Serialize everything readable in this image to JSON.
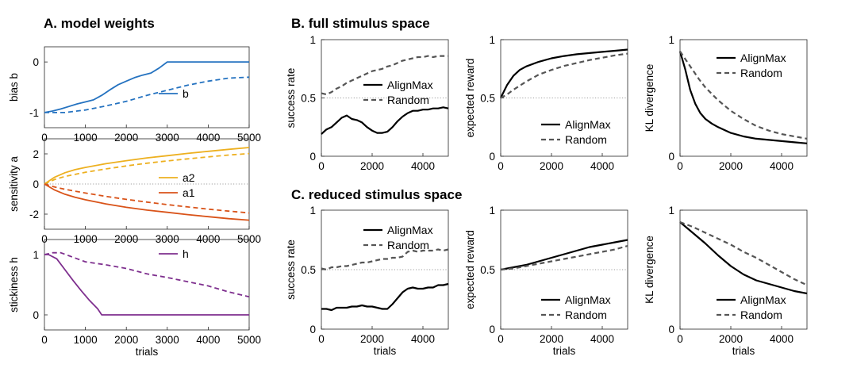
{
  "panel_titles": [
    "A. model weights",
    "B. full stimulus space",
    "C. reduced stimulus space"
  ],
  "colors": {
    "b": "#2472c0",
    "a2": "#edb020",
    "a1": "#d95319",
    "h": "#7e2f8e",
    "alignmax": "#000000",
    "random": "#555555"
  },
  "chart_data": [
    {
      "id": "A1",
      "type": "line",
      "ylabel": "bias b",
      "xlim": [
        0,
        5000
      ],
      "ylim": [
        -1.3,
        0.3
      ],
      "yticks": [
        -1,
        0
      ],
      "xticks": [
        0,
        1000,
        2000,
        3000,
        4000,
        5000
      ],
      "ref_lines": [],
      "legend_loc": "bottom-right",
      "series": [
        {
          "name": "b",
          "style": "solid",
          "color": "#2472c0",
          "x": [
            0,
            200,
            400,
            600,
            800,
            1000,
            1200,
            1400,
            1600,
            1800,
            2000,
            2200,
            2400,
            2600,
            2800,
            3000,
            5000
          ],
          "y": [
            -1.0,
            -0.97,
            -0.93,
            -0.88,
            -0.83,
            -0.79,
            -0.75,
            -0.66,
            -0.55,
            -0.45,
            -0.38,
            -0.31,
            -0.26,
            -0.22,
            -0.12,
            0.0,
            0.0
          ]
        },
        {
          "name": "",
          "style": "dashed",
          "color": "#2472c0",
          "x": [
            0,
            500,
            1000,
            1500,
            2000,
            2500,
            3000,
            3500,
            4000,
            4500,
            5000
          ],
          "y": [
            -1.0,
            -1.0,
            -0.95,
            -0.87,
            -0.78,
            -0.66,
            -0.56,
            -0.46,
            -0.38,
            -0.32,
            -0.3
          ]
        }
      ]
    },
    {
      "id": "A2",
      "type": "line",
      "ylabel": "sensitivity a",
      "xlim": [
        0,
        5000
      ],
      "ylim": [
        -3,
        3
      ],
      "yticks": [
        -2,
        0,
        2
      ],
      "xticks": [
        0,
        1000,
        2000,
        3000,
        4000,
        5000
      ],
      "ref_lines": [
        0
      ],
      "legend_loc": "right",
      "series": [
        {
          "name": "a2",
          "style": "solid",
          "color": "#edb020",
          "x": [
            0,
            250,
            500,
            750,
            1000,
            1500,
            2000,
            2500,
            3000,
            3500,
            4000,
            4500,
            5000
          ],
          "y": [
            0,
            0.45,
            0.75,
            0.95,
            1.1,
            1.35,
            1.55,
            1.73,
            1.88,
            2.03,
            2.17,
            2.3,
            2.42
          ]
        },
        {
          "name": "",
          "style": "dashed",
          "color": "#edb020",
          "x": [
            0,
            250,
            500,
            1000,
            1500,
            2000,
            2500,
            3000,
            3500,
            4000,
            4500,
            5000
          ],
          "y": [
            0,
            0.3,
            0.5,
            0.78,
            1.0,
            1.2,
            1.38,
            1.53,
            1.67,
            1.8,
            1.92,
            2.02
          ]
        },
        {
          "name": "a1",
          "style": "solid",
          "color": "#d95319",
          "x": [
            0,
            250,
            500,
            750,
            1000,
            1500,
            2000,
            2500,
            3000,
            3500,
            4000,
            4500,
            5000
          ],
          "y": [
            0,
            -0.4,
            -0.68,
            -0.88,
            -1.05,
            -1.32,
            -1.55,
            -1.73,
            -1.88,
            -2.03,
            -2.17,
            -2.3,
            -2.4
          ]
        },
        {
          "name": "",
          "style": "dashed",
          "color": "#d95319",
          "x": [
            0,
            250,
            500,
            1000,
            1500,
            2000,
            2500,
            3000,
            3500,
            4000,
            4500,
            5000
          ],
          "y": [
            0,
            -0.2,
            -0.35,
            -0.6,
            -0.82,
            -1.02,
            -1.2,
            -1.37,
            -1.52,
            -1.67,
            -1.8,
            -1.92
          ]
        }
      ]
    },
    {
      "id": "A3",
      "type": "line",
      "ylabel": "stickiness h",
      "xlabel": "trials",
      "xlim": [
        0,
        5000
      ],
      "ylim": [
        -0.25,
        1.25
      ],
      "yticks": [
        0,
        1
      ],
      "xticks": [
        0,
        1000,
        2000,
        3000,
        4000,
        5000
      ],
      "ref_lines": [],
      "legend_loc": "top-right",
      "series": [
        {
          "name": "h",
          "style": "solid",
          "color": "#7e2f8e",
          "x": [
            0,
            100,
            300,
            500,
            700,
            900,
            1100,
            1300,
            1400,
            1700,
            5000
          ],
          "y": [
            1.0,
            1.0,
            0.93,
            0.75,
            0.57,
            0.4,
            0.24,
            0.1,
            0.0,
            0.0,
            0.0
          ]
        },
        {
          "name": "",
          "style": "dashed",
          "color": "#7e2f8e",
          "x": [
            0,
            200,
            400,
            600,
            800,
            1000,
            1500,
            2000,
            2500,
            3000,
            3500,
            4000,
            4500,
            5000
          ],
          "y": [
            1.0,
            1.03,
            1.03,
            0.98,
            0.93,
            0.88,
            0.83,
            0.77,
            0.68,
            0.62,
            0.55,
            0.48,
            0.38,
            0.3
          ]
        }
      ]
    },
    {
      "id": "B1",
      "type": "line",
      "ylabel": "success rate",
      "xlim": [
        0,
        5000
      ],
      "ylim": [
        0,
        1
      ],
      "yticks": [
        0,
        0.5,
        1
      ],
      "xticks": [
        0,
        2000,
        4000
      ],
      "ref_lines": [
        0.5
      ],
      "legend_loc": "middle-right",
      "series": [
        {
          "name": "AlignMax",
          "style": "solid",
          "color": "#000000",
          "x": [
            0,
            200,
            400,
            600,
            800,
            1000,
            1200,
            1400,
            1600,
            1800,
            2000,
            2200,
            2400,
            2600,
            2800,
            3000,
            3200,
            3400,
            3600,
            3800,
            4000,
            4200,
            4400,
            4600,
            4800,
            5000
          ],
          "y": [
            0.19,
            0.23,
            0.25,
            0.29,
            0.33,
            0.35,
            0.32,
            0.31,
            0.29,
            0.25,
            0.22,
            0.2,
            0.2,
            0.21,
            0.25,
            0.3,
            0.34,
            0.37,
            0.39,
            0.39,
            0.4,
            0.4,
            0.41,
            0.41,
            0.42,
            0.41
          ]
        },
        {
          "name": "Random",
          "style": "dashed",
          "color": "#555555",
          "x": [
            0,
            200,
            400,
            600,
            800,
            1000,
            1200,
            1400,
            1600,
            1800,
            2000,
            2200,
            2400,
            2600,
            2800,
            3000,
            3200,
            3400,
            3600,
            3800,
            4000,
            4200,
            4400,
            4600,
            4800,
            5000
          ],
          "y": [
            0.54,
            0.53,
            0.55,
            0.58,
            0.6,
            0.63,
            0.65,
            0.67,
            0.69,
            0.71,
            0.73,
            0.74,
            0.75,
            0.77,
            0.78,
            0.8,
            0.82,
            0.83,
            0.84,
            0.85,
            0.85,
            0.86,
            0.85,
            0.86,
            0.86,
            0.86
          ]
        }
      ]
    },
    {
      "id": "B2",
      "type": "line",
      "ylabel": "expected reward",
      "xlim": [
        0,
        5000
      ],
      "ylim": [
        0,
        1
      ],
      "yticks": [
        0,
        0.5,
        1
      ],
      "xticks": [
        0,
        2000,
        4000
      ],
      "ref_lines": [
        0.5
      ],
      "legend_loc": "bottom-right",
      "series": [
        {
          "name": "AlignMax",
          "style": "solid",
          "color": "#000000",
          "x": [
            0,
            250,
            500,
            750,
            1000,
            1500,
            2000,
            2500,
            3000,
            3500,
            4000,
            4500,
            5000
          ],
          "y": [
            0.5,
            0.61,
            0.69,
            0.74,
            0.77,
            0.81,
            0.84,
            0.86,
            0.875,
            0.885,
            0.895,
            0.905,
            0.915
          ]
        },
        {
          "name": "Random",
          "style": "dashed",
          "color": "#555555",
          "x": [
            0,
            250,
            500,
            1000,
            1500,
            2000,
            2500,
            3000,
            3500,
            4000,
            4500,
            5000
          ],
          "y": [
            0.5,
            0.53,
            0.57,
            0.64,
            0.7,
            0.74,
            0.775,
            0.8,
            0.825,
            0.845,
            0.865,
            0.88
          ]
        }
      ]
    },
    {
      "id": "B3",
      "type": "line",
      "ylabel": "KL divergence",
      "xlim": [
        0,
        5000
      ],
      "ylim": [
        0,
        1
      ],
      "yticks": [
        0,
        1
      ],
      "xticks": [
        0,
        2000,
        4000
      ],
      "ref_lines": [],
      "legend_loc": "top-right",
      "series": [
        {
          "name": "AlignMax",
          "style": "solid",
          "color": "#000000",
          "x": [
            0,
            200,
            400,
            600,
            800,
            1000,
            1250,
            1500,
            2000,
            2500,
            3000,
            3500,
            4000,
            4500,
            5000
          ],
          "y": [
            0.9,
            0.75,
            0.57,
            0.45,
            0.37,
            0.32,
            0.28,
            0.25,
            0.2,
            0.17,
            0.15,
            0.14,
            0.13,
            0.12,
            0.11
          ]
        },
        {
          "name": "Random",
          "style": "dashed",
          "color": "#555555",
          "x": [
            0,
            250,
            500,
            750,
            1000,
            1500,
            2000,
            2500,
            3000,
            3500,
            4000,
            4500,
            5000
          ],
          "y": [
            0.9,
            0.82,
            0.74,
            0.66,
            0.59,
            0.48,
            0.39,
            0.32,
            0.26,
            0.22,
            0.19,
            0.17,
            0.15
          ]
        }
      ]
    },
    {
      "id": "C1",
      "type": "line",
      "ylabel": "success rate",
      "xlabel": "trials",
      "xlim": [
        0,
        5000
      ],
      "ylim": [
        0,
        1
      ],
      "yticks": [
        0,
        0.5,
        1
      ],
      "xticks": [
        0,
        2000,
        4000
      ],
      "ref_lines": [
        0.5
      ],
      "legend_loc": "top-right",
      "series": [
        {
          "name": "AlignMax",
          "style": "solid",
          "color": "#000000",
          "x": [
            0,
            200,
            400,
            600,
            800,
            1000,
            1200,
            1400,
            1600,
            1800,
            2000,
            2200,
            2400,
            2600,
            2800,
            3000,
            3200,
            3400,
            3600,
            3800,
            4000,
            4200,
            4400,
            4600,
            4800,
            5000
          ],
          "y": [
            0.17,
            0.17,
            0.16,
            0.18,
            0.18,
            0.18,
            0.19,
            0.19,
            0.2,
            0.19,
            0.19,
            0.18,
            0.17,
            0.17,
            0.21,
            0.26,
            0.31,
            0.34,
            0.35,
            0.34,
            0.34,
            0.35,
            0.35,
            0.37,
            0.37,
            0.38
          ]
        },
        {
          "name": "Random",
          "style": "dashed",
          "color": "#555555",
          "x": [
            0,
            200,
            400,
            600,
            800,
            1000,
            1200,
            1400,
            1600,
            1800,
            2000,
            2200,
            2400,
            2600,
            2800,
            3000,
            3200,
            3400,
            3600,
            3800,
            4000,
            4200,
            4400,
            4600,
            4800,
            5000
          ],
          "y": [
            0.51,
            0.5,
            0.52,
            0.52,
            0.53,
            0.53,
            0.54,
            0.55,
            0.56,
            0.56,
            0.57,
            0.58,
            0.59,
            0.59,
            0.6,
            0.6,
            0.61,
            0.65,
            0.66,
            0.65,
            0.66,
            0.66,
            0.66,
            0.67,
            0.66,
            0.67
          ]
        }
      ]
    },
    {
      "id": "C2",
      "type": "line",
      "ylabel": "expected reward",
      "xlabel": "trials",
      "xlim": [
        0,
        5000
      ],
      "ylim": [
        0,
        1
      ],
      "yticks": [
        0,
        0.5,
        1
      ],
      "xticks": [
        0,
        2000,
        4000
      ],
      "ref_lines": [
        0.5
      ],
      "legend_loc": "bottom-right",
      "series": [
        {
          "name": "AlignMax",
          "style": "solid",
          "color": "#000000",
          "x": [
            0,
            500,
            1000,
            1500,
            2000,
            2500,
            3000,
            3500,
            4000,
            4500,
            5000
          ],
          "y": [
            0.5,
            0.52,
            0.54,
            0.57,
            0.6,
            0.63,
            0.66,
            0.69,
            0.71,
            0.73,
            0.75
          ]
        },
        {
          "name": "Random",
          "style": "dashed",
          "color": "#555555",
          "x": [
            0,
            500,
            1000,
            1500,
            2000,
            2500,
            3000,
            3500,
            4000,
            4500,
            5000
          ],
          "y": [
            0.5,
            0.51,
            0.53,
            0.55,
            0.57,
            0.59,
            0.61,
            0.63,
            0.65,
            0.67,
            0.7
          ]
        }
      ]
    },
    {
      "id": "C3",
      "type": "line",
      "ylabel": "KL divergence",
      "xlabel": "trials",
      "xlim": [
        0,
        5000
      ],
      "ylim": [
        0,
        1
      ],
      "yticks": [
        0,
        1
      ],
      "xticks": [
        0,
        2000,
        4000
      ],
      "ref_lines": [],
      "legend_loc": "bottom-right",
      "series": [
        {
          "name": "AlignMax",
          "style": "solid",
          "color": "#000000",
          "x": [
            0,
            500,
            1000,
            1500,
            2000,
            2500,
            3000,
            3500,
            4000,
            4500,
            5000
          ],
          "y": [
            0.9,
            0.81,
            0.72,
            0.62,
            0.53,
            0.46,
            0.41,
            0.38,
            0.35,
            0.32,
            0.3
          ]
        },
        {
          "name": "Random",
          "style": "dashed",
          "color": "#555555",
          "x": [
            0,
            500,
            1000,
            1500,
            2000,
            2500,
            3000,
            3500,
            4000,
            4500,
            5000
          ],
          "y": [
            0.9,
            0.86,
            0.81,
            0.76,
            0.71,
            0.65,
            0.6,
            0.54,
            0.48,
            0.42,
            0.37
          ]
        }
      ]
    }
  ]
}
